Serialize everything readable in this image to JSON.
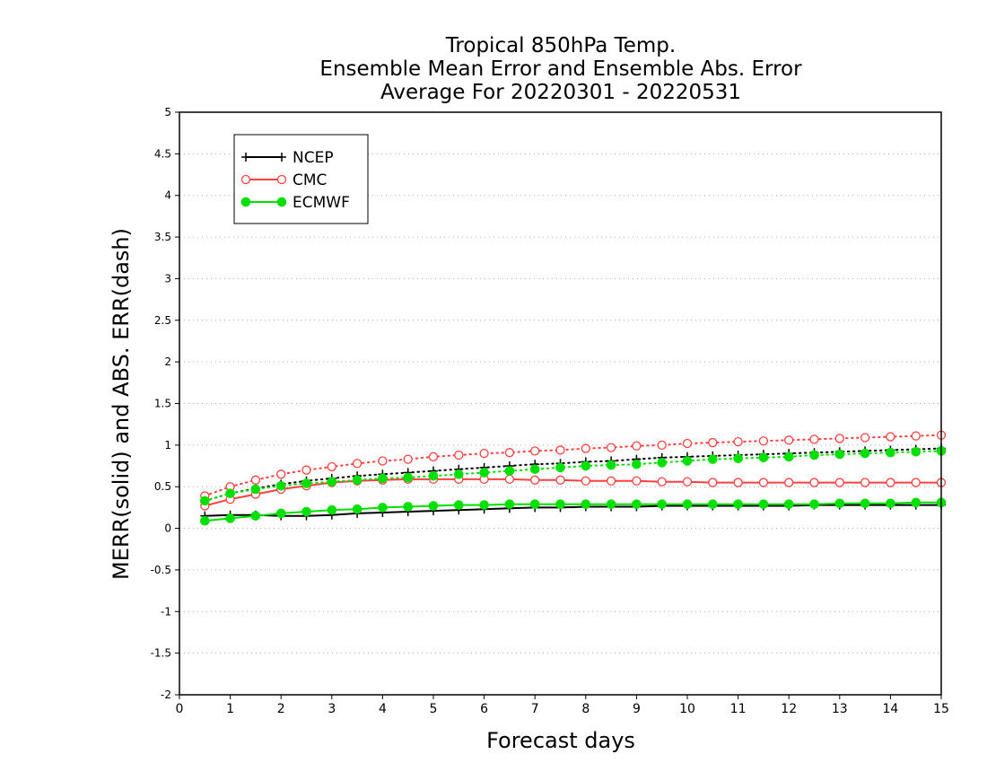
{
  "chart_data": {
    "type": "line",
    "title_lines": [
      "Tropical 850hPa Temp.",
      "Ensemble Mean Error and Ensemble Abs. Error",
      "Average For 20220301 - 20220531"
    ],
    "xlabel": "Forecast days",
    "ylabel": "MERR(solid) and ABS. ERR(dash)",
    "xlim": [
      0,
      15
    ],
    "ylim": [
      -2,
      5
    ],
    "x_ticks": [
      "0",
      "1",
      "2",
      "3",
      "4",
      "5",
      "6",
      "7",
      "8",
      "9",
      "10",
      "11",
      "12",
      "13",
      "14",
      "15"
    ],
    "y_ticks": [
      "-2",
      "-1.5",
      "-1",
      "-0.5",
      "0",
      "0.5",
      "1",
      "1.5",
      "2",
      "2.5",
      "3",
      "3.5",
      "4",
      "4.5",
      "5"
    ],
    "grid": "horizontal dotted",
    "legend_position": "top-left",
    "x": [
      0.5,
      1,
      1.5,
      2,
      2.5,
      3,
      3.5,
      4,
      4.5,
      5,
      5.5,
      6,
      6.5,
      7,
      7.5,
      8,
      8.5,
      9,
      9.5,
      10,
      10.5,
      11,
      11.5,
      12,
      12.5,
      13,
      13.5,
      14,
      14.5,
      15
    ],
    "series": [
      {
        "name": "NCEP",
        "color": "#000000",
        "marker": "plus",
        "merr": [
          0.15,
          0.16,
          0.16,
          0.15,
          0.15,
          0.16,
          0.18,
          0.19,
          0.2,
          0.21,
          0.22,
          0.23,
          0.24,
          0.25,
          0.25,
          0.26,
          0.26,
          0.26,
          0.27,
          0.27,
          0.27,
          0.27,
          0.27,
          0.27,
          0.28,
          0.28,
          0.28,
          0.28,
          0.28,
          0.28
        ],
        "abs_err": [
          0.33,
          0.42,
          0.48,
          0.53,
          0.57,
          0.6,
          0.63,
          0.65,
          0.67,
          0.69,
          0.71,
          0.73,
          0.75,
          0.77,
          0.78,
          0.8,
          0.81,
          0.83,
          0.85,
          0.86,
          0.87,
          0.88,
          0.89,
          0.9,
          0.91,
          0.92,
          0.93,
          0.94,
          0.95,
          0.96
        ]
      },
      {
        "name": "CMC",
        "color": "#ff4040",
        "marker": "open-circle",
        "merr": [
          0.27,
          0.35,
          0.41,
          0.47,
          0.51,
          0.55,
          0.57,
          0.58,
          0.59,
          0.59,
          0.59,
          0.59,
          0.59,
          0.58,
          0.58,
          0.57,
          0.57,
          0.57,
          0.56,
          0.56,
          0.55,
          0.55,
          0.55,
          0.55,
          0.55,
          0.55,
          0.55,
          0.55,
          0.55,
          0.55
        ],
        "abs_err": [
          0.39,
          0.5,
          0.58,
          0.65,
          0.7,
          0.74,
          0.78,
          0.81,
          0.83,
          0.86,
          0.88,
          0.9,
          0.91,
          0.93,
          0.94,
          0.96,
          0.97,
          0.99,
          1.0,
          1.02,
          1.03,
          1.04,
          1.05,
          1.06,
          1.07,
          1.08,
          1.09,
          1.1,
          1.11,
          1.12
        ]
      },
      {
        "name": "ECMWF",
        "color": "#00e000",
        "marker": "filled-circle",
        "merr": [
          0.09,
          0.12,
          0.15,
          0.18,
          0.2,
          0.22,
          0.23,
          0.25,
          0.26,
          0.27,
          0.28,
          0.28,
          0.29,
          0.29,
          0.29,
          0.29,
          0.29,
          0.29,
          0.29,
          0.29,
          0.29,
          0.29,
          0.29,
          0.29,
          0.29,
          0.3,
          0.3,
          0.3,
          0.31,
          0.31
        ],
        "abs_err": [
          0.33,
          0.42,
          0.47,
          0.51,
          0.54,
          0.56,
          0.58,
          0.6,
          0.61,
          0.63,
          0.65,
          0.67,
          0.69,
          0.71,
          0.73,
          0.75,
          0.76,
          0.77,
          0.79,
          0.81,
          0.83,
          0.84,
          0.85,
          0.86,
          0.88,
          0.89,
          0.9,
          0.91,
          0.92,
          0.93
        ]
      }
    ]
  }
}
